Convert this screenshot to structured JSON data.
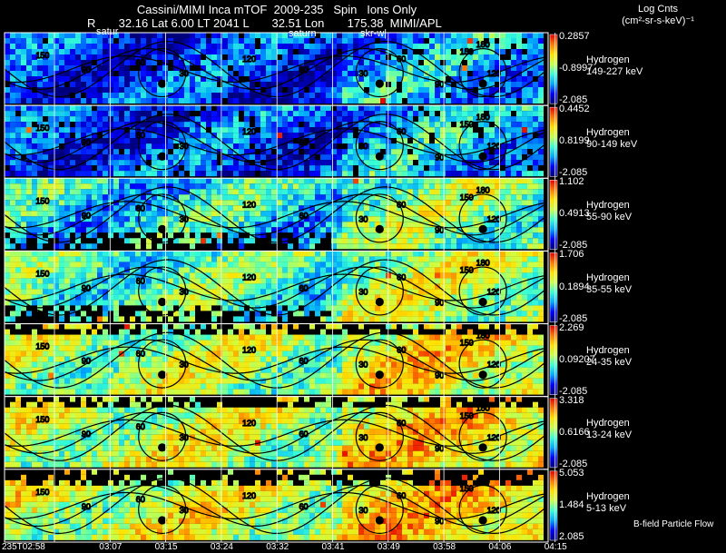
{
  "header": {
    "title": "Cassini/MIMI Inca mTOF  2009-235   Spin   Ions Only",
    "line2": "R       32.16 Lat 6.00 LT 2041 L       32.51 Lon       175.38  MIMI/APL"
  },
  "colorbar_unit": {
    "line1": "Log Cnts",
    "line2": "(cm²-sr-s-keV)⁻¹"
  },
  "markers": {
    "satur": "satur",
    "saturn": "saturn",
    "skr_w": "skr-w|"
  },
  "footer_note": "B-field Particle Flow",
  "colors": {
    "background": "#000000",
    "grid": "#ffffff",
    "contour": "#000000"
  },
  "chart_data": {
    "type": "heatmap",
    "title": "Cassini/MIMI Inca mTOF  2009-235   Spin   Ions Only",
    "colormap": [
      "#00007a",
      "#0000ff",
      "#00a8ff",
      "#36ffd6",
      "#c8ff4a",
      "#ffe200",
      "#ff7a00",
      "#e60000"
    ],
    "x_ticks": [
      "235T02:58",
      "03:07",
      "03:15",
      "03:24",
      "03:32",
      "03:41",
      "03:49",
      "03:58",
      "04:06",
      "04:15"
    ],
    "contour_labels": [
      "30",
      "60",
      "90",
      "120",
      "150",
      "180"
    ],
    "panels": [
      {
        "species": "Hydrogen",
        "energy": "149-227 keV",
        "max": "0.2857",
        "mid": "-0.8997",
        "min": "-2.085",
        "level": 0.18
      },
      {
        "species": "Hydrogen",
        "energy": "90-149 keV",
        "max": "0.4452",
        "mid": "0.8199",
        "min": "-2.085",
        "level": 0.2
      },
      {
        "species": "Hydrogen",
        "energy": "55-90 keV",
        "max": "1.102",
        "mid": "0.4913",
        "min": "-2.085",
        "level": 0.38
      },
      {
        "species": "Hydrogen",
        "energy": "35-55 keV",
        "max": "1.706",
        "mid": "0.1894",
        "min": "-2.085",
        "level": 0.45
      },
      {
        "species": "Hydrogen",
        "energy": "24-35 keV",
        "max": "2.269",
        "mid": "0.09207",
        "min": "-2.085",
        "level": 0.55
      },
      {
        "species": "Hydrogen",
        "energy": "13-24 keV",
        "max": "3.318",
        "mid": "0.6166",
        "min": "-2.085",
        "level": 0.58
      },
      {
        "species": "Hydrogen",
        "energy": "5-13 keV",
        "max": "5.053",
        "mid": "1.484",
        "min": "2.085",
        "level": 0.6
      }
    ]
  }
}
